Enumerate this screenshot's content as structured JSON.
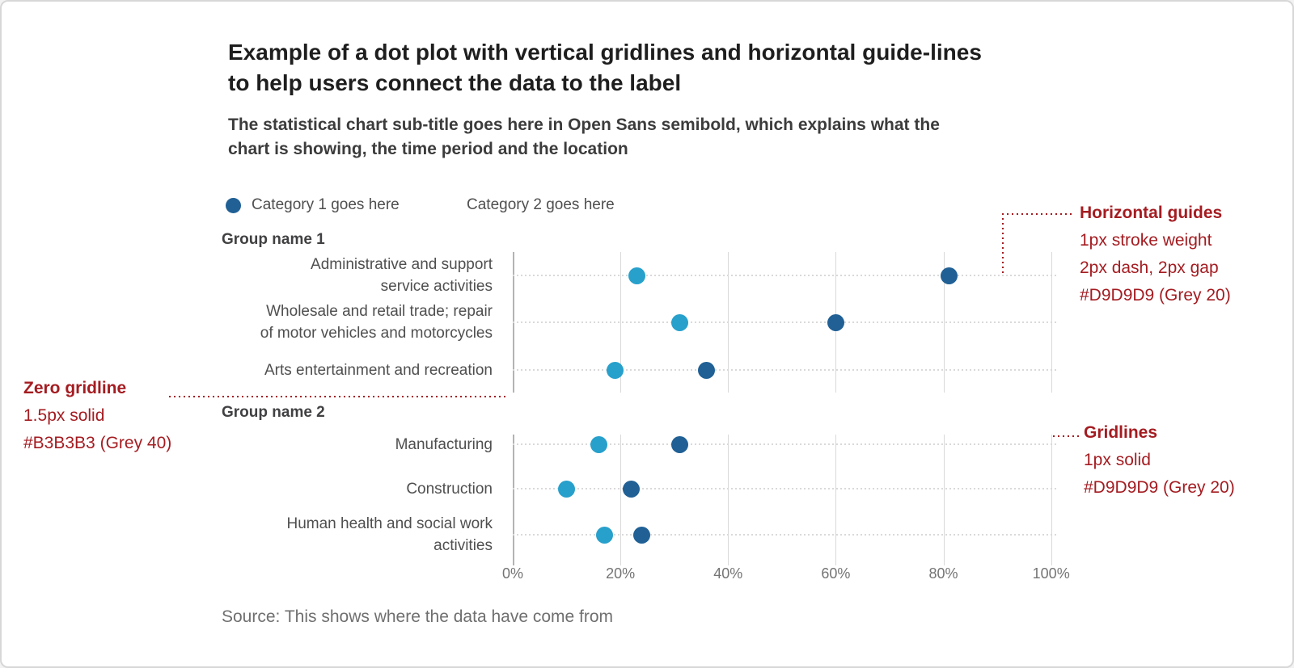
{
  "header": {
    "title_lines": [
      "Example of a dot plot with vertical gridlines and horizontal guide-lines",
      "to help users connect the data to the label"
    ],
    "subtitle_lines": [
      "The statistical chart sub-title goes here in Open Sans semibold, which explains what the",
      "chart is showing, the time period and the location"
    ]
  },
  "legend": {
    "items": [
      {
        "label": "Category 1 goes here",
        "swatch": "#206095"
      },
      {
        "label": "Category 2 goes here",
        "swatch": null
      }
    ]
  },
  "chart_data": {
    "type": "scatter",
    "variant": "dot-plot",
    "title": "Example of a dot plot with vertical gridlines and horizontal guide-lines to help users connect the data to the label",
    "x_axis": {
      "min": 0,
      "max": 100,
      "unit": "%",
      "ticks": [
        "0%",
        "20%",
        "40%",
        "60%",
        "80%",
        "100%"
      ]
    },
    "grid": {
      "vertical_gridlines": true,
      "horizontal_guides": "dotted"
    },
    "series": [
      {
        "name": "Category 1 goes here",
        "color": "#206095"
      },
      {
        "name": "Category 2 goes here",
        "color": "#27A0CC"
      }
    ],
    "groups": [
      {
        "name": "Group name 1",
        "rows": [
          {
            "label_lines": [
              "Administrative and support",
              "service activities"
            ],
            "category1": 81,
            "category2": 23
          },
          {
            "label_lines": [
              "Wholesale and retail trade; repair",
              "of motor vehicles and motorcycles"
            ],
            "category1": 60,
            "category2": 31
          },
          {
            "label_lines": [
              "Arts entertainment and recreation"
            ],
            "category1": 36,
            "category2": 19
          }
        ]
      },
      {
        "name": "Group name 2",
        "rows": [
          {
            "label_lines": [
              "Manufacturing"
            ],
            "category1": 31,
            "category2": 16
          },
          {
            "label_lines": [
              "Construction"
            ],
            "category1": 22,
            "category2": 10
          },
          {
            "label_lines": [
              "Human health and social work",
              "activities"
            ],
            "category1": 24,
            "category2": 17
          }
        ]
      }
    ]
  },
  "annotations": {
    "horizontal_guides": {
      "heading": "Horizontal guides",
      "lines": [
        "1px stroke weight",
        "2px dash, 2px gap",
        "#D9D9D9 (Grey 20)"
      ]
    },
    "zero_gridline": {
      "heading": "Zero gridline",
      "lines": [
        "1.5px solid",
        "#B3B3B3 (Grey 40)"
      ]
    },
    "gridlines_note": {
      "heading": "Gridlines",
      "lines": [
        "1px solid",
        "#D9D9D9 (Grey 20)"
      ]
    }
  },
  "source": {
    "text": "Source: This shows where the data have come from"
  },
  "colors": {
    "category1": "#206095",
    "category2": "#27A0CC",
    "gridline": "#D9D9D9",
    "zero_gridline": "#B3B3B3",
    "annotation_red": "#A41C21"
  }
}
